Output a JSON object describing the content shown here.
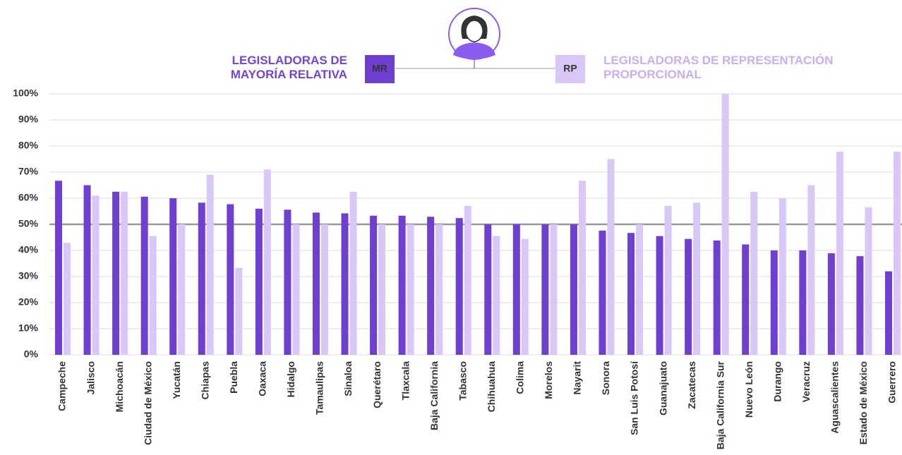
{
  "chart_data": {
    "type": "bar",
    "categories": [
      "Campeche",
      "Jalisco",
      "Michoacán",
      "Ciudad de México",
      "Yucatán",
      "Chiapas",
      "Puebla",
      "Oaxaca",
      "Hidalgo",
      "Tamaulipas",
      "Sinaloa",
      "Querétaro",
      "Tlaxcala",
      "Baja California",
      "Tabasco",
      "Chihuahua",
      "Colima",
      "Morelos",
      "Nayarit",
      "Sonora",
      "San Luis Potosí",
      "Guanajuato",
      "Zacatecas",
      "Baja California Sur",
      "Nuevo León",
      "Durango",
      "Veracruz",
      "Aguascalientes",
      "Estado de México",
      "Guerrero"
    ],
    "series": [
      {
        "name": "LEGISLADORAS DE MAYORÍA RELATIVA",
        "short": "MR",
        "color": "#6e3fd1",
        "text_color": "#7443d4",
        "values": [
          66.7,
          65,
          62.5,
          60.6,
          60,
          58.3,
          57.7,
          56,
          55.6,
          54.5,
          54.2,
          53.3,
          53.3,
          52.9,
          52.4,
          50,
          50,
          50,
          50,
          47.6,
          46.7,
          45.5,
          44.4,
          43.8,
          42.3,
          40,
          40,
          38.9,
          37.8,
          32
        ]
      },
      {
        "name": "LEGISLADORAS DE REPRESENTACIÓN PROPORCIONAL",
        "short": "RP",
        "color": "#d8c7f7",
        "text_color": "#c8aef4",
        "values": [
          42.9,
          61,
          62.5,
          45.5,
          50,
          69,
          33.3,
          71,
          50,
          50,
          62.5,
          50,
          50,
          50,
          57.1,
          45.5,
          44.4,
          50,
          66.7,
          75,
          50,
          57.1,
          58.3,
          100,
          62.5,
          60,
          65,
          77.8,
          56.5,
          77.8
        ]
      }
    ],
    "ylim": [
      0,
      100
    ],
    "yticks": [
      {
        "value": 0,
        "label": "0%"
      },
      {
        "value": 10,
        "label": "10%"
      },
      {
        "value": 20,
        "label": "20%"
      },
      {
        "value": 30,
        "label": "30%"
      },
      {
        "value": 40,
        "label": "40%"
      },
      {
        "value": 50,
        "label": "50%"
      },
      {
        "value": 60,
        "label": "60%"
      },
      {
        "value": 70,
        "label": "70%"
      },
      {
        "value": 80,
        "label": "80%"
      },
      {
        "value": 90,
        "label": "90%"
      },
      {
        "value": 100,
        "label": "100%"
      }
    ],
    "grid": true,
    "reference_line": 50
  }
}
